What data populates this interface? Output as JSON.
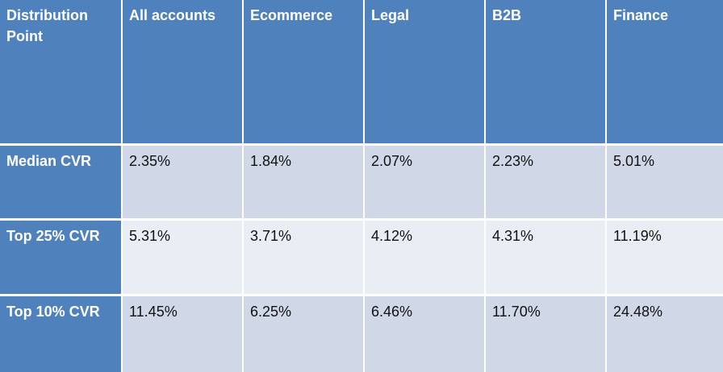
{
  "table": {
    "headers": [
      "Distribution Point",
      "All accounts",
      "Ecommerce",
      "Legal",
      "B2B",
      "Finance"
    ],
    "rows": [
      {
        "label": "Median CVR",
        "values": [
          "2.35%",
          "1.84%",
          "2.07%",
          "2.23%",
          "5.01%"
        ]
      },
      {
        "label": "Top 25% CVR",
        "values": [
          "5.31%",
          "3.71%",
          "4.12%",
          "4.31%",
          "11.19%"
        ]
      },
      {
        "label": "Top 10% CVR",
        "values": [
          "11.45%",
          "6.25%",
          "6.46%",
          "11.70%",
          "24.48%"
        ]
      }
    ]
  },
  "colors": {
    "header_bg": "#4f81bd",
    "band_dark": "#d0d8e8",
    "band_light": "#e9edf4"
  }
}
